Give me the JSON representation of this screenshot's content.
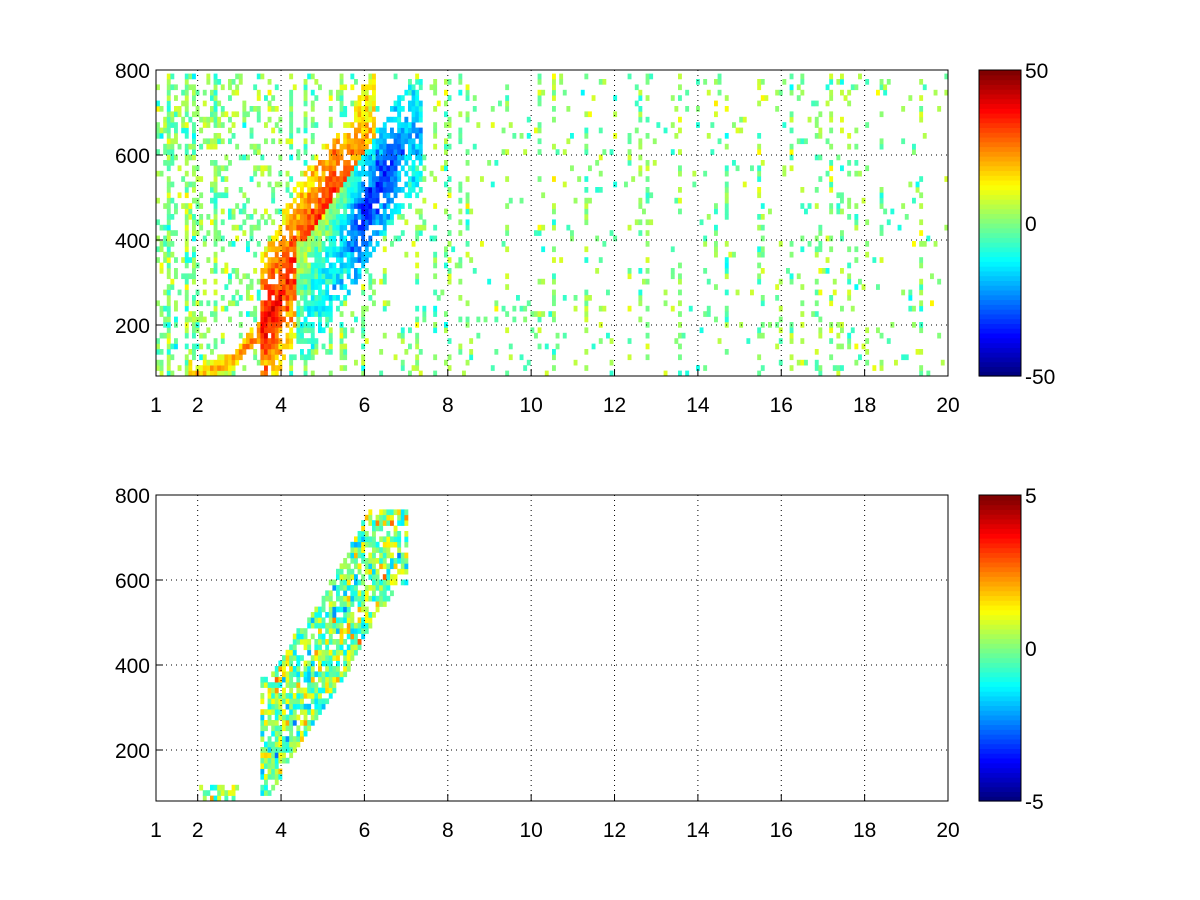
{
  "chart_data": [
    {
      "type": "heatmap",
      "title": "",
      "xlabel": "",
      "ylabel": "",
      "xlim": [
        1,
        20
      ],
      "ylim": [
        80,
        800
      ],
      "xticks": [
        1,
        2,
        4,
        6,
        8,
        10,
        12,
        14,
        16,
        18,
        20
      ],
      "yticks": [
        200,
        400,
        600,
        800
      ],
      "grid": true,
      "colormap": "jet",
      "colorbar": {
        "ticks": [
          50,
          0,
          -50
        ],
        "range": [
          -50,
          50
        ]
      },
      "features": {
        "blank_fraction": 0.72,
        "vertical_stripes": true,
        "ridge": {
          "description": "positive band rising with x",
          "points": [
            [
              2.0,
              88,
              20
            ],
            [
              2.8,
              110,
              20
            ],
            [
              3.6,
              200,
              38
            ],
            [
              4.0,
              280,
              35
            ],
            [
              4.6,
              400,
              32
            ],
            [
              5.2,
              470,
              40
            ],
            [
              5.6,
              500,
              35
            ],
            [
              6.0,
              620,
              22
            ]
          ],
          "width_x": 0.32
        },
        "trough": {
          "description": "negative band right of ridge",
          "points": [
            [
              4.6,
              260,
              -12
            ],
            [
              5.4,
              380,
              -25
            ],
            [
              6.0,
              470,
              -40
            ],
            [
              6.5,
              560,
              -35
            ],
            [
              7.1,
              650,
              -20
            ]
          ],
          "width_x": 0.35
        }
      }
    },
    {
      "type": "heatmap",
      "title": "",
      "xlabel": "",
      "ylabel": "",
      "xlim": [
        1,
        20
      ],
      "ylim": [
        80,
        800
      ],
      "xticks": [
        1,
        2,
        4,
        6,
        8,
        10,
        12,
        14,
        16,
        18,
        20
      ],
      "yticks": [
        200,
        400,
        600,
        800
      ],
      "grid": true,
      "colormap": "jet",
      "colorbar": {
        "ticks": [
          5,
          0,
          -5
        ],
        "range": [
          -5,
          5
        ]
      },
      "features": {
        "blank_fraction": 0.99,
        "cluster": {
          "description": "noisy valid region, values scattered around 0",
          "points": [
            [
              3.7,
              200
            ],
            [
              4.3,
              300
            ],
            [
              5.0,
              400
            ],
            [
              5.6,
              500
            ],
            [
              6.2,
              620
            ],
            [
              6.8,
              700
            ]
          ],
          "width_x": 0.75
        }
      }
    }
  ]
}
